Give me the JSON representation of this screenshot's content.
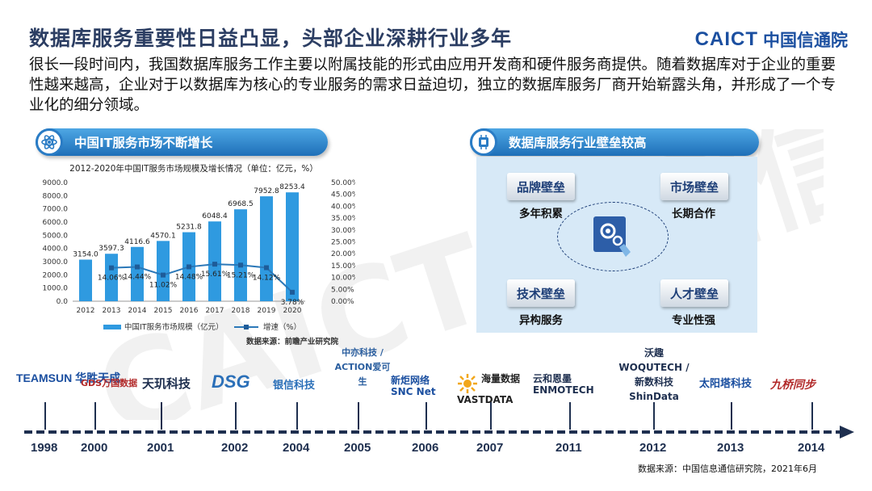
{
  "title": "数据库服务重要性日益凸显，头部企业深耕行业多年",
  "brand": {
    "en": "CAICT",
    "cn": "中国信通院"
  },
  "intro": "很长一段时间内，我国数据库服务工作主要以附属技能的形式由应用开发商和硬件服务商提供。随着数据库对于企业的重要性越来越高，企业对于以数据库为核心的专业服务的需求日益迫切，独立的数据库服务厂商开始崭露头角，并形成了一个专业化的细分领域。",
  "left_banner": "中国IT服务市场不断增长",
  "right_banner": "数据库服务行业壁垒较高",
  "chart_data": {
    "type": "bar",
    "title": "2012-2020年中国IT服务市场规模及增长情况（单位：亿元，%）",
    "categories": [
      "2012",
      "2013",
      "2014",
      "2015",
      "2016",
      "2017",
      "2018",
      "2019",
      "2020"
    ],
    "series": [
      {
        "name": "中国IT服务市场规模（亿元）",
        "type": "bar",
        "axis": "left",
        "values": [
          3154.0,
          3597.3,
          4116.6,
          4570.1,
          5231.8,
          6048.4,
          6968.5,
          7952.8,
          8253.4
        ],
        "labels": [
          "3154.0",
          "3597.3",
          "4116.6",
          "4570.1",
          "5231.8",
          "6048.4",
          "6968.5",
          "7952.8",
          "8253.4"
        ],
        "color": "#2f9ae0"
      },
      {
        "name": "增速（%）",
        "type": "line",
        "axis": "right",
        "values": [
          null,
          14.06,
          14.44,
          11.02,
          14.48,
          15.61,
          15.21,
          14.12,
          3.78
        ],
        "labels": [
          "",
          "14.06%",
          "14.44%",
          "11.02%",
          "14.48%",
          "15.61%",
          "15.21%",
          "14.12%",
          "3.78%"
        ],
        "color": "#2b78b8"
      }
    ],
    "y_left": {
      "min": 0,
      "max": 9000,
      "ticks": [
        "0.0",
        "1000.0",
        "2000.0",
        "3000.0",
        "4000.0",
        "5000.0",
        "6000.0",
        "7000.0",
        "8000.0",
        "9000.0"
      ]
    },
    "y_right": {
      "min": 0,
      "max": 50,
      "ticks": [
        "0.00%",
        "5.00%",
        "10.00%",
        "15.00%",
        "20.00%",
        "25.00%",
        "30.00%",
        "35.00%",
        "40.00%",
        "45.00%",
        "50.00%"
      ]
    },
    "grid": false,
    "legend": "bottom",
    "source": "数据来源：前瞻产业研究院"
  },
  "barriers": [
    {
      "tab": "品牌壁垒",
      "sub": "多年积累"
    },
    {
      "tab": "市场壁垒",
      "sub": "长期合作"
    },
    {
      "tab": "技术壁垒",
      "sub": "异构服务"
    },
    {
      "tab": "人才壁垒",
      "sub": "专业性强"
    }
  ],
  "timeline": [
    {
      "year": "1998",
      "company": "TEAMSUN 华胜天成"
    },
    {
      "year": "2000",
      "company": "GDS万国数据"
    },
    {
      "year": "2001",
      "company": "天玑科技"
    },
    {
      "year": "2002",
      "company": "DSG"
    },
    {
      "year": "2004",
      "company": "银信科技"
    },
    {
      "year": "2005",
      "company": "中亦科技 / ACTION爱可生"
    },
    {
      "year": "2006",
      "company": "新炬网络 SNC Net"
    },
    {
      "year": "2007",
      "company": "海量数据 VASTDATA"
    },
    {
      "year": "2011",
      "company": "云和恩墨 ENMOTECH"
    },
    {
      "year": "2012",
      "company": "沃趣 WOQUTECH / 新数科技 ShinData"
    },
    {
      "year": "2013",
      "company": "太阳塔科技"
    },
    {
      "year": "2014",
      "company": "九桥同步"
    }
  ],
  "source_bottom": "数据来源：中国信息通信研究院，2021年6月",
  "watermark": "CAICT 中国信通院",
  "colors": {
    "accent": "#1e6fb8",
    "bar": "#2f9ae0",
    "line": "#2b78b8",
    "title": "#2c3e63"
  },
  "icons": [
    "atom-icon",
    "chip-icon",
    "gear-hand-icon",
    "arrow-right-icon"
  ]
}
